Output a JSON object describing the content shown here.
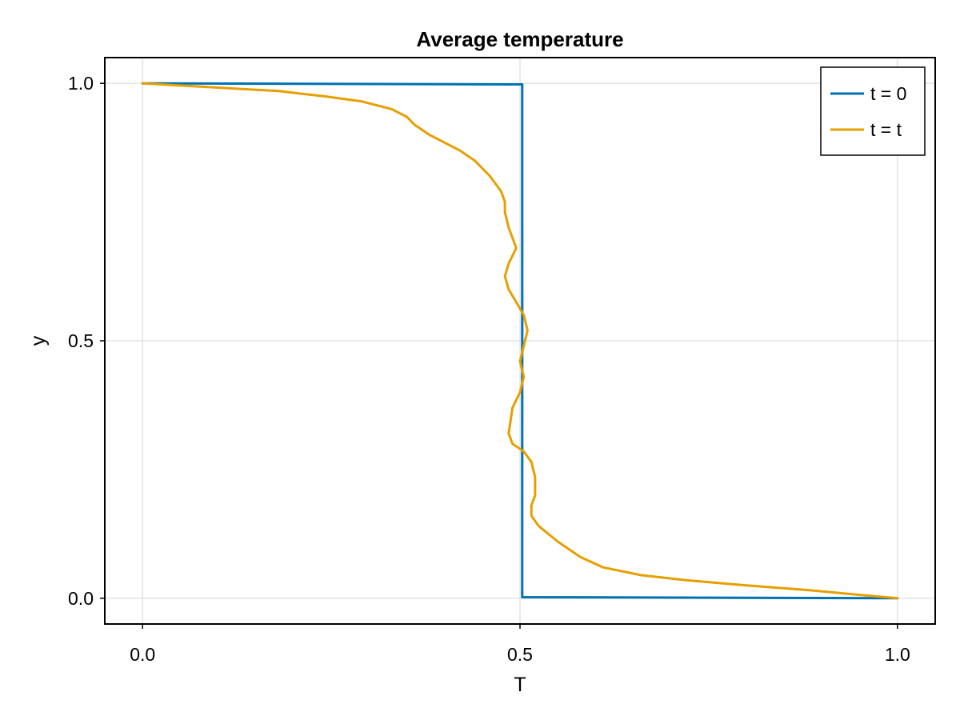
{
  "chart_data": {
    "type": "line",
    "title": "Average temperature",
    "xlabel": "T",
    "ylabel": "y",
    "xlim": [
      -0.05,
      1.05
    ],
    "ylim": [
      -0.05,
      1.05
    ],
    "xticks": [
      0.0,
      0.5,
      1.0
    ],
    "yticks": [
      0.0,
      0.5,
      1.0
    ],
    "xtick_labels": [
      "0.0",
      "0.5",
      "1.0"
    ],
    "ytick_labels": [
      "0.0",
      "0.5",
      "1.0"
    ],
    "grid": true,
    "legend_position": "top-right",
    "series": [
      {
        "name": "t = 0",
        "color": "#0072b2",
        "x": [
          0.0,
          0.503,
          0.503,
          1.0
        ],
        "y": [
          1.0,
          0.998,
          0.002,
          0.0
        ]
      },
      {
        "name": "t = t",
        "color": "#e69f00",
        "x": [
          0.0,
          0.06,
          0.12,
          0.18,
          0.24,
          0.29,
          0.33,
          0.35,
          0.36,
          0.37,
          0.38,
          0.4,
          0.42,
          0.44,
          0.46,
          0.475,
          0.48,
          0.48,
          0.485,
          0.495,
          0.485,
          0.48,
          0.485,
          0.495,
          0.505,
          0.51,
          0.505,
          0.5,
          0.505,
          0.5,
          0.49,
          0.485,
          0.49,
          0.505,
          0.515,
          0.52,
          0.52,
          0.515,
          0.515,
          0.525,
          0.55,
          0.58,
          0.61,
          0.66,
          0.72,
          0.8,
          0.88,
          0.94,
          1.0
        ],
        "y": [
          1.0,
          0.995,
          0.99,
          0.985,
          0.975,
          0.965,
          0.95,
          0.935,
          0.92,
          0.91,
          0.9,
          0.885,
          0.87,
          0.85,
          0.82,
          0.79,
          0.77,
          0.75,
          0.72,
          0.68,
          0.65,
          0.625,
          0.6,
          0.575,
          0.55,
          0.52,
          0.49,
          0.46,
          0.43,
          0.4,
          0.37,
          0.32,
          0.3,
          0.285,
          0.265,
          0.235,
          0.2,
          0.18,
          0.16,
          0.14,
          0.11,
          0.08,
          0.06,
          0.045,
          0.035,
          0.025,
          0.016,
          0.008,
          0.0
        ]
      }
    ]
  }
}
